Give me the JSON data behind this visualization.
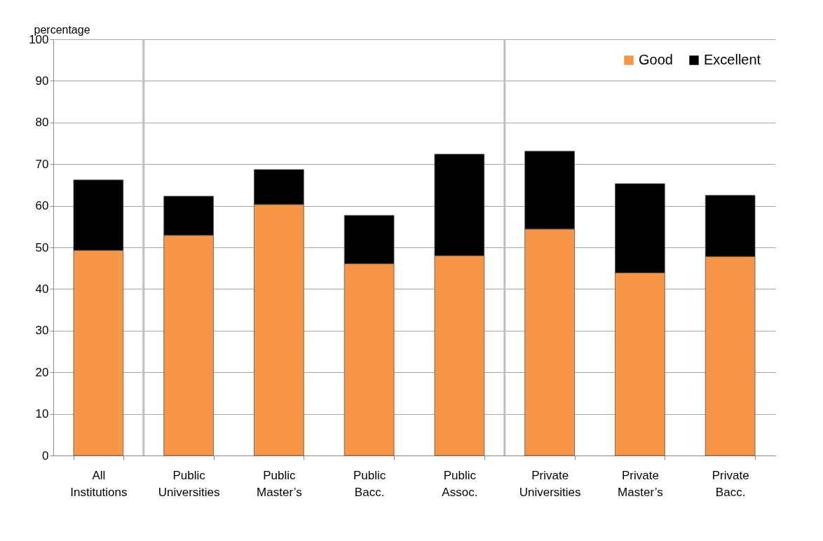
{
  "chart_data": {
    "type": "bar",
    "stacked": true,
    "ylabel": "percentage",
    "categories": [
      "All Institutions",
      "Public Universities",
      "Public Master’s",
      "Public Bacc.",
      "Public Assoc.",
      "Private Universities",
      "Private Master’s",
      "Private Bacc."
    ],
    "series": [
      {
        "name": "Good",
        "color": "#f79646",
        "values": [
          49.3,
          52.9,
          60.3,
          46.1,
          48.0,
          54.4,
          43.9,
          47.8
        ]
      },
      {
        "name": "Excellent",
        "color": "#000000",
        "values": [
          16.9,
          9.4,
          8.4,
          11.6,
          24.4,
          18.7,
          21.4,
          14.7
        ]
      }
    ],
    "ylim": [
      0,
      100
    ],
    "yticks": [
      0,
      10,
      20,
      30,
      40,
      50,
      60,
      70,
      80,
      90,
      100
    ],
    "grid": "y",
    "legend": "top right"
  }
}
